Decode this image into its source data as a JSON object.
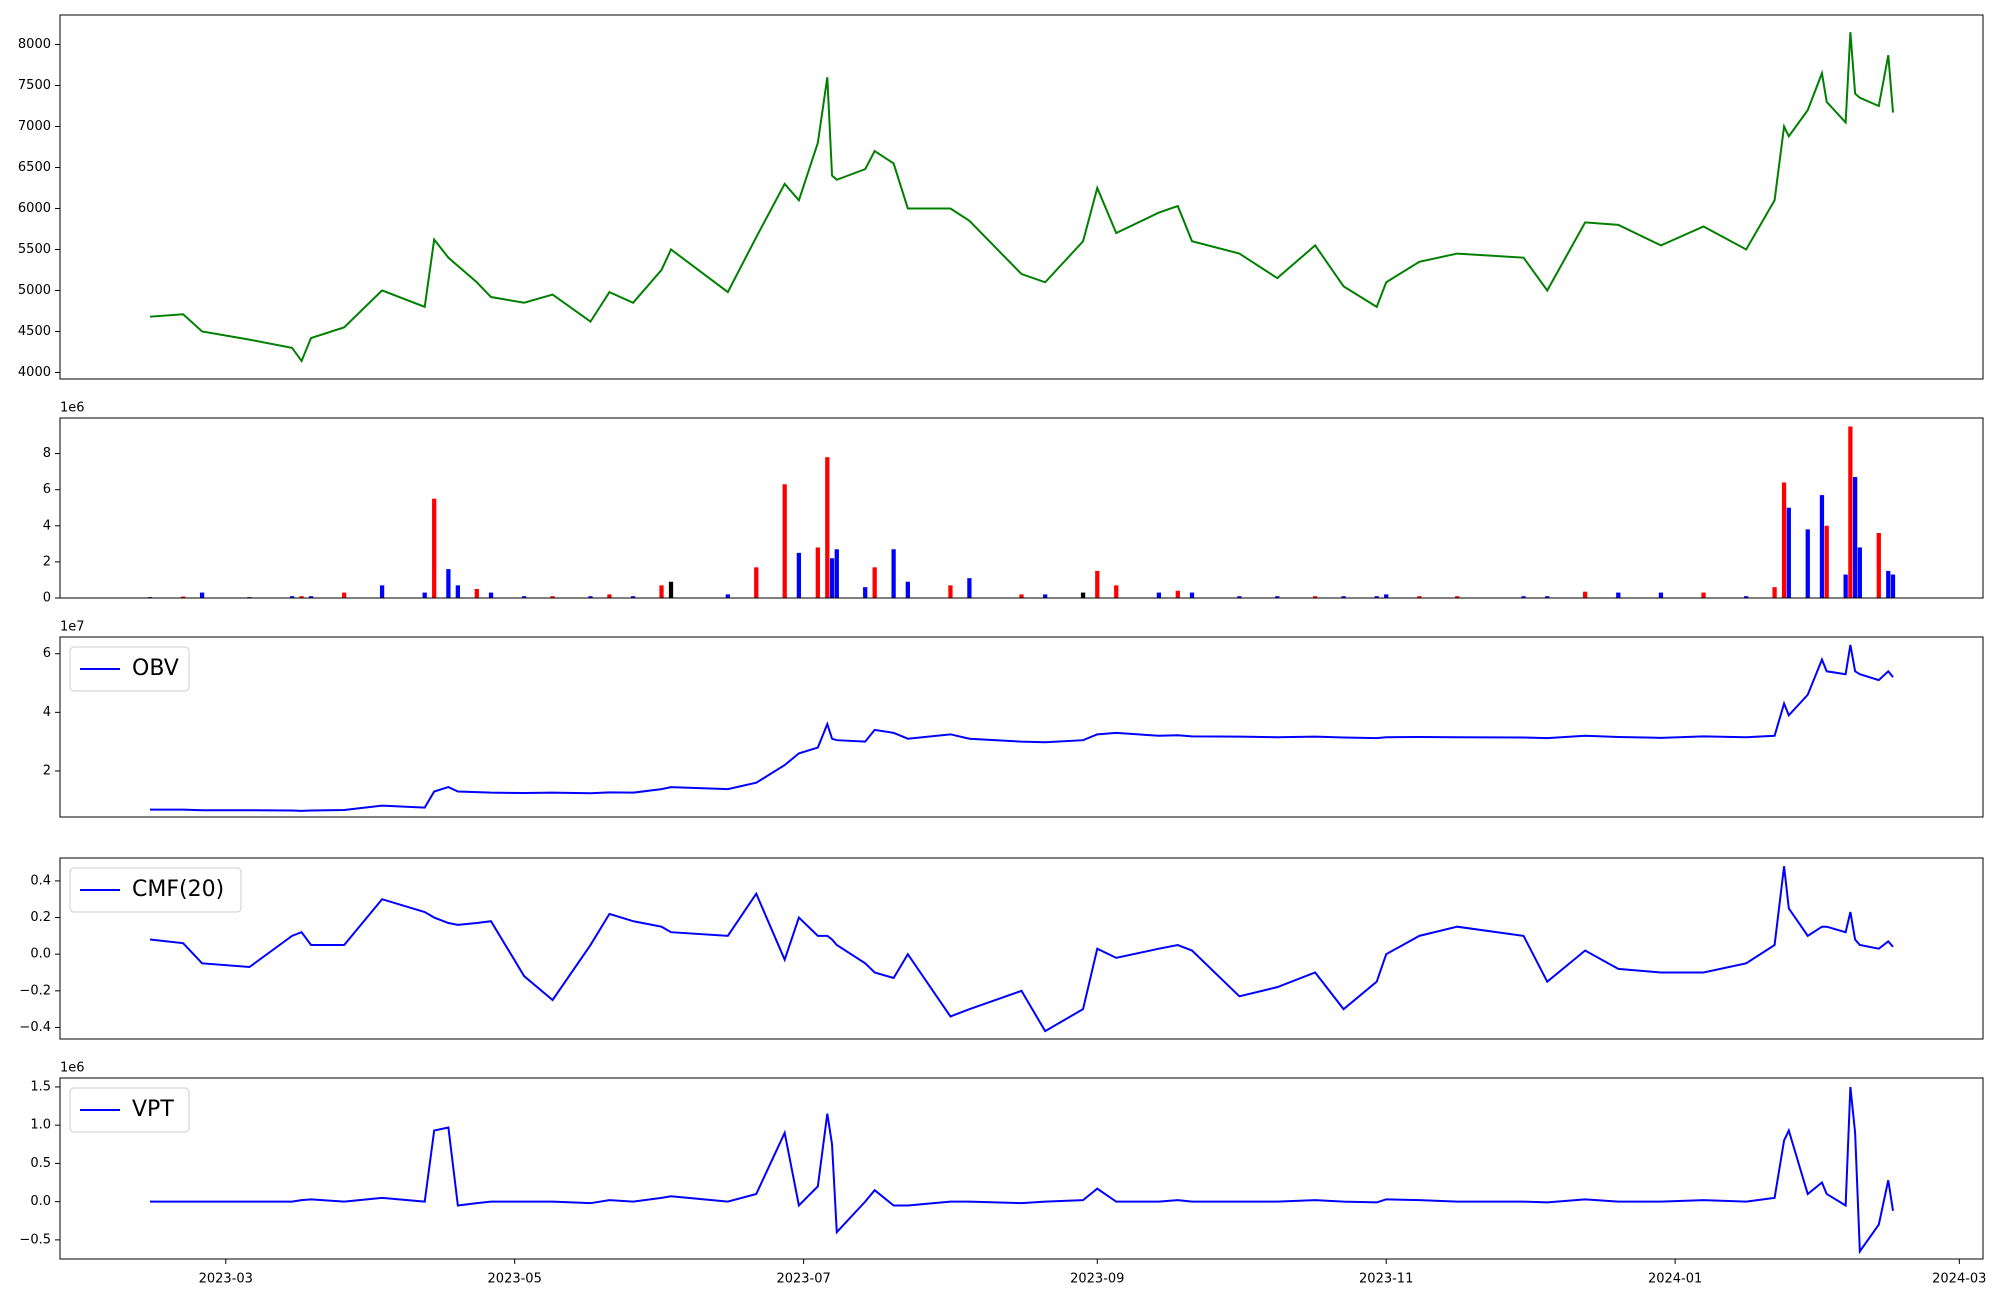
{
  "chart_data": [
    {
      "type": "line",
      "x": [
        "2023-02-13",
        "2023-02-20",
        "2023-02-24",
        "2023-03-06",
        "2023-03-15",
        "2023-03-17",
        "2023-03-19",
        "2023-03-26",
        "2023-04-03",
        "2023-04-12",
        "2023-04-14",
        "2023-04-17",
        "2023-04-19",
        "2023-04-23",
        "2023-04-26",
        "2023-05-03",
        "2023-05-09",
        "2023-05-17",
        "2023-05-21",
        "2023-05-26",
        "2023-06-01",
        "2023-06-03",
        "2023-06-15",
        "2023-06-21",
        "2023-06-27",
        "2023-06-30",
        "2023-07-04",
        "2023-07-06",
        "2023-07-07",
        "2023-07-08",
        "2023-07-14",
        "2023-07-16",
        "2023-07-20",
        "2023-07-23",
        "2023-08-01",
        "2023-08-05",
        "2023-08-16",
        "2023-08-21",
        "2023-08-29",
        "2023-09-01",
        "2023-09-05",
        "2023-09-14",
        "2023-09-18",
        "2023-09-21",
        "2023-10-01",
        "2023-10-09",
        "2023-10-17",
        "2023-10-23",
        "2023-10-30",
        "2023-11-01",
        "2023-11-08",
        "2023-11-16",
        "2023-11-30",
        "2023-12-05",
        "2023-12-13",
        "2023-12-20",
        "2023-12-29",
        "2024-01-07",
        "2024-01-16",
        "2024-01-22",
        "2024-01-24",
        "2024-01-25",
        "2024-01-29",
        "2024-02-01",
        "2024-02-02",
        "2024-02-06",
        "2024-02-07",
        "2024-02-08",
        "2024-02-09",
        "2024-02-13",
        "2024-02-15",
        "2024-02-16"
      ],
      "series": [
        {
          "color": "green",
          "values": [
            4680,
            4710,
            4500,
            4400,
            4300,
            4140,
            4420,
            4550,
            5000,
            4800,
            5620,
            5400,
            5300,
            5100,
            4920,
            4850,
            4950,
            4620,
            4980,
            4850,
            5250,
            5500,
            4980,
            5650,
            6300,
            6100,
            6800,
            7600,
            6400,
            6350,
            6480,
            6700,
            6550,
            6000,
            6000,
            5850,
            5200,
            5100,
            5600,
            6250,
            5700,
            5950,
            6030,
            5600,
            5450,
            5150,
            5550,
            5050,
            4800,
            5100,
            5350,
            5450,
            5400,
            5000,
            5830,
            5800,
            5550,
            5780,
            5500,
            6100,
            7000,
            6880,
            7200,
            7650,
            7300,
            7050,
            8150,
            7400,
            7350,
            7250,
            7870,
            7170
          ]
        }
      ],
      "xlim": [
        "2023-01-25",
        "2024-03-06"
      ],
      "ylim": [
        3920,
        8360
      ],
      "yticks": [
        4000,
        4500,
        5000,
        5500,
        6000,
        6500,
        7000,
        7500,
        8000
      ]
    },
    {
      "type": "bar",
      "offset_label": "1e6",
      "x": [
        "2023-02-13",
        "2023-02-20",
        "2023-02-24",
        "2023-03-06",
        "2023-03-15",
        "2023-03-17",
        "2023-03-19",
        "2023-03-26",
        "2023-04-03",
        "2023-04-12",
        "2023-04-14",
        "2023-04-17",
        "2023-04-19",
        "2023-04-23",
        "2023-04-26",
        "2023-05-03",
        "2023-05-09",
        "2023-05-17",
        "2023-05-21",
        "2023-05-26",
        "2023-06-01",
        "2023-06-03",
        "2023-06-15",
        "2023-06-21",
        "2023-06-27",
        "2023-06-30",
        "2023-07-04",
        "2023-07-06",
        "2023-07-07",
        "2023-07-08",
        "2023-07-14",
        "2023-07-16",
        "2023-07-20",
        "2023-07-23",
        "2023-08-01",
        "2023-08-05",
        "2023-08-16",
        "2023-08-21",
        "2023-08-29",
        "2023-09-01",
        "2023-09-05",
        "2023-09-14",
        "2023-09-18",
        "2023-09-21",
        "2023-10-01",
        "2023-10-09",
        "2023-10-17",
        "2023-10-23",
        "2023-10-30",
        "2023-11-01",
        "2023-11-08",
        "2023-11-16",
        "2023-11-30",
        "2023-12-05",
        "2023-12-13",
        "2023-12-20",
        "2023-12-29",
        "2024-01-07",
        "2024-01-16",
        "2024-01-22",
        "2024-01-24",
        "2024-01-25",
        "2024-01-29",
        "2024-02-01",
        "2024-02-02",
        "2024-02-06",
        "2024-02-07",
        "2024-02-08",
        "2024-02-09",
        "2024-02-13",
        "2024-02-15",
        "2024-02-16"
      ],
      "values": [
        0.05,
        0.08,
        0.3,
        0.05,
        0.1,
        0.1,
        0.1,
        0.3,
        0.7,
        0.3,
        5.5,
        1.6,
        0.7,
        0.5,
        0.3,
        0.1,
        0.1,
        0.1,
        0.2,
        0.1,
        0.7,
        0.9,
        0.2,
        1.7,
        6.3,
        2.5,
        2.8,
        7.8,
        2.2,
        2.7,
        0.6,
        1.7,
        2.7,
        0.9,
        0.7,
        1.1,
        0.2,
        0.2,
        0.3,
        1.5,
        0.7,
        0.3,
        0.4,
        0.3,
        0.1,
        0.1,
        0.1,
        0.1,
        0.1,
        0.2,
        0.1,
        0.1,
        0.1,
        0.1,
        0.35,
        0.3,
        0.3,
        0.3,
        0.1,
        0.6,
        6.4,
        5.0,
        3.8,
        5.7,
        4.0,
        1.3,
        9.5,
        6.7,
        2.8,
        3.6,
        1.5,
        1.3
      ],
      "colors": [
        "blue",
        "red",
        "blue",
        "blue",
        "blue",
        "red",
        "blue",
        "red",
        "blue",
        "blue",
        "red",
        "blue",
        "blue",
        "red",
        "blue",
        "blue",
        "red",
        "blue",
        "red",
        "blue",
        "red",
        "black",
        "blue",
        "red",
        "red",
        "blue",
        "red",
        "red",
        "blue",
        "blue",
        "blue",
        "red",
        "blue",
        "blue",
        "red",
        "blue",
        "red",
        "blue",
        "black",
        "red",
        "red",
        "blue",
        "red",
        "blue",
        "blue",
        "blue",
        "red",
        "blue",
        "blue",
        "blue",
        "red",
        "red",
        "blue",
        "blue",
        "red",
        "blue",
        "blue",
        "red",
        "blue",
        "red",
        "red",
        "blue",
        "blue",
        "blue",
        "red",
        "blue",
        "red",
        "blue",
        "blue",
        "red",
        "blue",
        "blue"
      ],
      "xlim": [
        "2023-01-25",
        "2024-03-06"
      ],
      "ylim": [
        0,
        9.97
      ],
      "yticks": [
        0,
        2,
        4,
        6,
        8
      ]
    },
    {
      "type": "line",
      "offset_label": "1e7",
      "legend": "upper left",
      "x": [
        "2023-02-13",
        "2023-02-20",
        "2023-02-24",
        "2023-03-06",
        "2023-03-15",
        "2023-03-17",
        "2023-03-19",
        "2023-03-26",
        "2023-04-03",
        "2023-04-12",
        "2023-04-14",
        "2023-04-17",
        "2023-04-19",
        "2023-04-23",
        "2023-04-26",
        "2023-05-03",
        "2023-05-09",
        "2023-05-17",
        "2023-05-21",
        "2023-05-26",
        "2023-06-01",
        "2023-06-03",
        "2023-06-15",
        "2023-06-21",
        "2023-06-27",
        "2023-06-30",
        "2023-07-04",
        "2023-07-06",
        "2023-07-07",
        "2023-07-08",
        "2023-07-14",
        "2023-07-16",
        "2023-07-20",
        "2023-07-23",
        "2023-08-01",
        "2023-08-05",
        "2023-08-16",
        "2023-08-21",
        "2023-08-29",
        "2023-09-01",
        "2023-09-05",
        "2023-09-14",
        "2023-09-18",
        "2023-09-21",
        "2023-10-01",
        "2023-10-09",
        "2023-10-17",
        "2023-10-23",
        "2023-10-30",
        "2023-11-01",
        "2023-11-08",
        "2023-11-16",
        "2023-11-30",
        "2023-12-05",
        "2023-12-13",
        "2023-12-20",
        "2023-12-29",
        "2024-01-07",
        "2024-01-16",
        "2024-01-22",
        "2024-01-24",
        "2024-01-25",
        "2024-01-29",
        "2024-02-01",
        "2024-02-02",
        "2024-02-06",
        "2024-02-07",
        "2024-02-08",
        "2024-02-09",
        "2024-02-13",
        "2024-02-15",
        "2024-02-16"
      ],
      "series": [
        {
          "name": "OBV",
          "color": "blue",
          "values": [
            0.68,
            0.68,
            0.66,
            0.66,
            0.65,
            0.64,
            0.65,
            0.67,
            0.82,
            0.75,
            1.3,
            1.45,
            1.3,
            1.28,
            1.26,
            1.25,
            1.26,
            1.24,
            1.27,
            1.26,
            1.38,
            1.45,
            1.38,
            1.6,
            2.2,
            2.6,
            2.8,
            3.6,
            3.1,
            3.05,
            3.0,
            3.4,
            3.3,
            3.1,
            3.25,
            3.1,
            3.0,
            2.98,
            3.05,
            3.25,
            3.3,
            3.2,
            3.22,
            3.18,
            3.17,
            3.15,
            3.17,
            3.14,
            3.12,
            3.15,
            3.16,
            3.15,
            3.14,
            3.12,
            3.2,
            3.16,
            3.13,
            3.18,
            3.15,
            3.2,
            4.3,
            3.9,
            4.6,
            5.8,
            5.4,
            5.3,
            6.3,
            5.4,
            5.3,
            5.1,
            5.4,
            5.2
          ]
        }
      ],
      "xlim": [
        "2023-01-25",
        "2024-03-06"
      ],
      "ylim": [
        0.43,
        6.57
      ],
      "yticks": [
        2,
        4,
        6
      ]
    },
    {
      "type": "line",
      "legend": "upper left",
      "x": [
        "2023-02-13",
        "2023-02-20",
        "2023-02-24",
        "2023-03-06",
        "2023-03-15",
        "2023-03-17",
        "2023-03-19",
        "2023-03-26",
        "2023-04-03",
        "2023-04-12",
        "2023-04-14",
        "2023-04-17",
        "2023-04-19",
        "2023-04-23",
        "2023-04-26",
        "2023-05-03",
        "2023-05-09",
        "2023-05-17",
        "2023-05-21",
        "2023-05-26",
        "2023-06-01",
        "2023-06-03",
        "2023-06-15",
        "2023-06-21",
        "2023-06-27",
        "2023-06-30",
        "2023-07-04",
        "2023-07-06",
        "2023-07-07",
        "2023-07-08",
        "2023-07-14",
        "2023-07-16",
        "2023-07-20",
        "2023-07-23",
        "2023-08-01",
        "2023-08-05",
        "2023-08-16",
        "2023-08-21",
        "2023-08-29",
        "2023-09-01",
        "2023-09-05",
        "2023-09-14",
        "2023-09-18",
        "2023-09-21",
        "2023-10-01",
        "2023-10-09",
        "2023-10-17",
        "2023-10-23",
        "2023-10-30",
        "2023-11-01",
        "2023-11-08",
        "2023-11-16",
        "2023-11-30",
        "2023-12-05",
        "2023-12-13",
        "2023-12-20",
        "2023-12-29",
        "2024-01-07",
        "2024-01-16",
        "2024-01-22",
        "2024-01-24",
        "2024-01-25",
        "2024-01-29",
        "2024-02-01",
        "2024-02-02",
        "2024-02-06",
        "2024-02-07",
        "2024-02-08",
        "2024-02-09",
        "2024-02-13",
        "2024-02-15",
        "2024-02-16"
      ],
      "series": [
        {
          "name": "CMF(20)",
          "color": "blue",
          "values": [
            0.08,
            0.06,
            -0.05,
            -0.07,
            0.1,
            0.12,
            0.05,
            0.05,
            0.3,
            0.23,
            0.2,
            0.17,
            0.16,
            0.17,
            0.18,
            -0.12,
            -0.25,
            0.05,
            0.22,
            0.18,
            0.15,
            0.12,
            0.1,
            0.33,
            -0.03,
            0.2,
            0.1,
            0.1,
            0.08,
            0.05,
            -0.05,
            -0.1,
            -0.13,
            0.0,
            -0.34,
            -0.3,
            -0.2,
            -0.42,
            -0.3,
            0.03,
            -0.02,
            0.03,
            0.05,
            0.02,
            -0.23,
            -0.18,
            -0.1,
            -0.3,
            -0.15,
            0.0,
            0.1,
            0.15,
            0.1,
            -0.15,
            0.02,
            -0.08,
            -0.1,
            -0.1,
            -0.05,
            0.05,
            0.48,
            0.25,
            0.1,
            0.15,
            0.15,
            0.12,
            0.23,
            0.08,
            0.05,
            0.03,
            0.07,
            0.04
          ]
        }
      ],
      "xlim": [
        "2023-01-25",
        "2024-03-06"
      ],
      "ylim": [
        -0.463,
        0.525
      ],
      "yticks": [
        {
          "value": -0.4,
          "label": "−0.4"
        },
        {
          "value": -0.2,
          "label": "−0.2"
        },
        {
          "value": 0,
          "label": "0.0"
        },
        0.2,
        0.4
      ]
    },
    {
      "type": "line",
      "offset_label": "1e6",
      "legend": "upper left",
      "x": [
        "2023-02-13",
        "2023-02-20",
        "2023-02-24",
        "2023-03-06",
        "2023-03-15",
        "2023-03-17",
        "2023-03-19",
        "2023-03-26",
        "2023-04-03",
        "2023-04-12",
        "2023-04-14",
        "2023-04-17",
        "2023-04-19",
        "2023-04-23",
        "2023-04-26",
        "2023-05-03",
        "2023-05-09",
        "2023-05-17",
        "2023-05-21",
        "2023-05-26",
        "2023-06-01",
        "2023-06-03",
        "2023-06-15",
        "2023-06-21",
        "2023-06-27",
        "2023-06-30",
        "2023-07-04",
        "2023-07-06",
        "2023-07-07",
        "2023-07-08",
        "2023-07-14",
        "2023-07-16",
        "2023-07-20",
        "2023-07-23",
        "2023-08-01",
        "2023-08-05",
        "2023-08-16",
        "2023-08-21",
        "2023-08-29",
        "2023-09-01",
        "2023-09-05",
        "2023-09-14",
        "2023-09-18",
        "2023-09-21",
        "2023-10-01",
        "2023-10-09",
        "2023-10-17",
        "2023-10-23",
        "2023-10-30",
        "2023-11-01",
        "2023-11-08",
        "2023-11-16",
        "2023-11-30",
        "2023-12-05",
        "2023-12-13",
        "2023-12-20",
        "2023-12-29",
        "2024-01-07",
        "2024-01-16",
        "2024-01-22",
        "2024-01-24",
        "2024-01-25",
        "2024-01-29",
        "2024-02-01",
        "2024-02-02",
        "2024-02-06",
        "2024-02-07",
        "2024-02-08",
        "2024-02-09",
        "2024-02-13",
        "2024-02-15",
        "2024-02-16"
      ],
      "series": [
        {
          "name": "VPT",
          "color": "blue",
          "values": [
            0.0,
            0.0,
            0.0,
            0.0,
            0.0,
            0.02,
            0.03,
            0.0,
            0.05,
            0.0,
            0.93,
            0.97,
            -0.05,
            -0.02,
            0.0,
            0.0,
            0.0,
            -0.02,
            0.02,
            0.0,
            0.05,
            0.07,
            0.0,
            0.1,
            0.9,
            -0.05,
            0.2,
            1.15,
            0.75,
            -0.4,
            0.0,
            0.15,
            -0.05,
            -0.05,
            0.0,
            0.0,
            -0.02,
            0.0,
            0.02,
            0.17,
            0.0,
            0.0,
            0.02,
            0.0,
            0.0,
            0.0,
            0.02,
            0.0,
            -0.01,
            0.03,
            0.02,
            0.0,
            0.0,
            -0.01,
            0.03,
            0.0,
            0.0,
            0.02,
            0.0,
            0.05,
            0.8,
            0.93,
            0.1,
            0.25,
            0.1,
            -0.05,
            1.5,
            0.9,
            -0.65,
            -0.3,
            0.28,
            -0.12
          ]
        }
      ],
      "xlim": [
        "2023-01-25",
        "2024-03-06"
      ],
      "ylim": [
        -0.75,
        1.617
      ],
      "yticks": [
        {
          "value": -0.5,
          "label": "−0.5"
        },
        {
          "value": 0,
          "label": "0.0"
        },
        0.5,
        {
          "value": 1,
          "label": "1.0"
        },
        1.5
      ],
      "xticks": [
        {
          "value": "2023-03-01",
          "label": "2023-03"
        },
        {
          "value": "2023-05-01",
          "label": "2023-05"
        },
        {
          "value": "2023-07-01",
          "label": "2023-07"
        },
        {
          "value": "2023-09-01",
          "label": "2023-09"
        },
        {
          "value": "2023-11-01",
          "label": "2023-11"
        },
        {
          "value": "2024-01-01",
          "label": "2024-01"
        },
        {
          "value": "2024-03-01",
          "label": "2024-03"
        }
      ]
    }
  ]
}
